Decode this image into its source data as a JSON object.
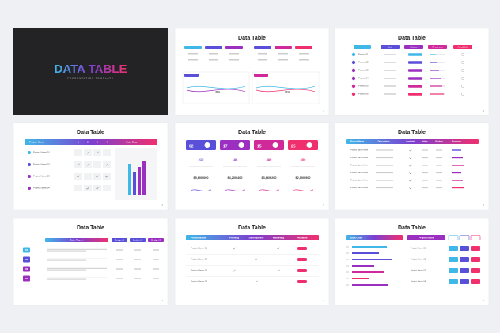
{
  "slides": [
    {
      "title": "DATA TABLE",
      "subtitle": "PRESENTATION TEMPLATE"
    },
    {
      "title": "Data Table",
      "callouts": [
        "45%",
        "70%"
      ],
      "page": "2"
    },
    {
      "title": "Data Table",
      "headers": [
        "Date",
        "Status",
        "Progress",
        "Available"
      ],
      "rows": [
        "Project 01",
        "Project 02",
        "Project 03",
        "Project 04",
        "Project 05",
        "Project 06"
      ],
      "page": "3"
    },
    {
      "title": "Data Table",
      "headers": [
        "Project Name",
        "1",
        "2",
        "3",
        "4",
        "Data Chart"
      ],
      "rows": [
        "Project Name 01",
        "Project Name 02",
        "Project Name 03",
        "Project Name 04"
      ],
      "page": "4"
    },
    {
      "title": "Data Table",
      "cards": [
        "02",
        "17",
        "15",
        "25"
      ],
      "counts": [
        "215",
        "186",
        "480",
        "350"
      ],
      "amounts": [
        "$5,600,000",
        "$4,200,400",
        "$3,669,200",
        "$2,900,900"
      ],
      "page": "5"
    },
    {
      "title": "Data Table",
      "headers": [
        "Project Name",
        "Description",
        "Available",
        "Value",
        "Budget",
        "Progress"
      ],
      "rows": [
        "Project Name Here",
        "Project Name Here",
        "Project Name Here",
        "Project Name Here",
        "Project Name Here",
        "Project Name Here"
      ],
      "page": "6"
    },
    {
      "title": "Data Table",
      "headers": [
        "Data Report",
        "Budget 1",
        "Budget 2",
        "Budget 3"
      ],
      "rows": [
        "01",
        "02",
        "03",
        "04"
      ],
      "page": "7"
    },
    {
      "title": "Data Table",
      "headers": [
        "Project Name",
        "Pitching",
        "Development",
        "Marketing",
        "Available"
      ],
      "rows": [
        "Project Name 01",
        "Project Name 02",
        "Project Name 03",
        "Project Name 04"
      ],
      "page": "8"
    },
    {
      "title": "Data Table",
      "headers": [
        "Data Chart",
        "Project Name"
      ],
      "rows": [
        "Project Name 01",
        "Project Name 02",
        "Project Name 03",
        "Project Name 04"
      ],
      "page": "9"
    }
  ]
}
